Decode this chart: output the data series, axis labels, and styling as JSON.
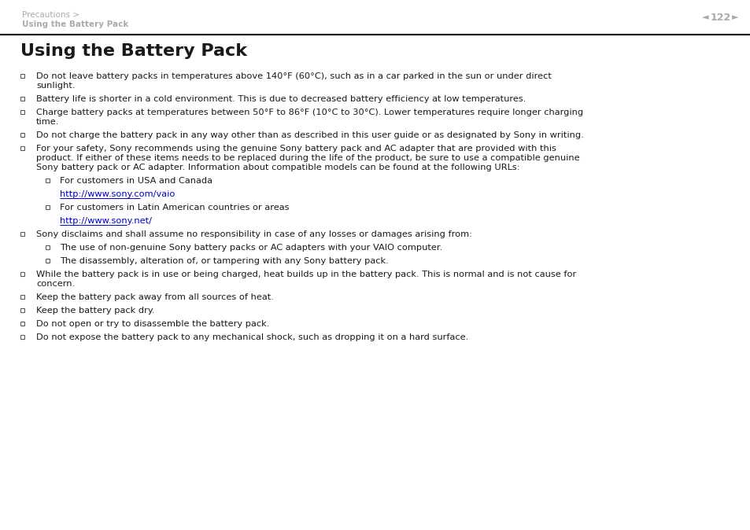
{
  "bg_color": "#ffffff",
  "breadcrumb_line1": "Precautions >",
  "breadcrumb_line2": "Using the Battery Pack",
  "page_number": "122",
  "title": "Using the Battery Pack",
  "title_fontsize": 16,
  "header_fontsize": 7.5,
  "body_fontsize": 8.2,
  "bullet_color": "#555555",
  "text_color": "#1a1a1a",
  "link_color": "#0000cc",
  "breadcrumb_color": "#aaaaaa",
  "page_num_color": "#aaaaaa",
  "line_color": "#000000",
  "items": [
    {
      "level": 1,
      "text": "Do not leave battery packs in temperatures above 140°F (60°C), such as in a car parked in the sun or under direct sunlight.",
      "lines": [
        "Do not leave battery packs in temperatures above 140°F (60°C), such as in a car parked in the sun or under direct",
        "sunlight."
      ]
    },
    {
      "level": 1,
      "text": "Battery life is shorter in a cold environment. This is due to decreased battery efficiency at low temperatures.",
      "lines": [
        "Battery life is shorter in a cold environment. This is due to decreased battery efficiency at low temperatures."
      ]
    },
    {
      "level": 1,
      "text": "Charge battery packs at temperatures between 50°F to 86°F (10°C to 30°C). Lower temperatures require longer charging time.",
      "lines": [
        "Charge battery packs at temperatures between 50°F to 86°F (10°C to 30°C). Lower temperatures require longer charging",
        "time."
      ]
    },
    {
      "level": 1,
      "text": "Do not charge the battery pack in any way other than as described in this user guide or as designated by Sony in writing.",
      "lines": [
        "Do not charge the battery pack in any way other than as described in this user guide or as designated by Sony in writing."
      ]
    },
    {
      "level": 1,
      "text": "",
      "lines": [
        "For your safety, Sony recommends using the genuine Sony battery pack and AC adapter that are provided with this",
        "product. If either of these items needs to be replaced during the life of the product, be sure to use a compatible genuine",
        "Sony battery pack or AC adapter. Information about compatible models can be found at the following URLs:"
      ]
    },
    {
      "level": 2,
      "text": "For customers in USA and Canada",
      "lines": [
        "For customers in USA and Canada"
      ]
    },
    {
      "level": 2,
      "is_link": true,
      "text": "http://www.sony.com/vaio",
      "lines": [
        "http://www.sony.com/vaio"
      ]
    },
    {
      "level": 2,
      "text": "For customers in Latin American countries or areas",
      "lines": [
        "For customers in Latin American countries or areas"
      ]
    },
    {
      "level": 2,
      "is_link": true,
      "text": "http://www.sony.net/",
      "lines": [
        "http://www.sony.net/"
      ]
    },
    {
      "level": 1,
      "text": "",
      "lines": [
        "Sony disclaims and shall assume no responsibility in case of any losses or damages arising from:"
      ]
    },
    {
      "level": 2,
      "text": "The use of non-genuine Sony battery packs or AC adapters with your VAIO computer.",
      "lines": [
        "The use of non-genuine Sony battery packs or AC adapters with your VAIO computer."
      ]
    },
    {
      "level": 2,
      "text": "The disassembly, alteration of, or tampering with any Sony battery pack.",
      "lines": [
        "The disassembly, alteration of, or tampering with any Sony battery pack."
      ]
    },
    {
      "level": 1,
      "text": "",
      "lines": [
        "While the battery pack is in use or being charged, heat builds up in the battery pack. This is normal and is not cause for",
        "concern."
      ]
    },
    {
      "level": 1,
      "text": "Keep the battery pack away from all sources of heat.",
      "lines": [
        "Keep the battery pack away from all sources of heat."
      ]
    },
    {
      "level": 1,
      "text": "Keep the battery pack dry.",
      "lines": [
        "Keep the battery pack dry."
      ]
    },
    {
      "level": 1,
      "text": "Do not open or try to disassemble the battery pack.",
      "lines": [
        "Do not open or try to disassemble the battery pack."
      ]
    },
    {
      "level": 1,
      "text": "Do not expose the battery pack to any mechanical shock, such as dropping it on a hard surface.",
      "lines": [
        "Do not expose the battery pack to any mechanical shock, such as dropping it on a hard surface."
      ]
    }
  ]
}
